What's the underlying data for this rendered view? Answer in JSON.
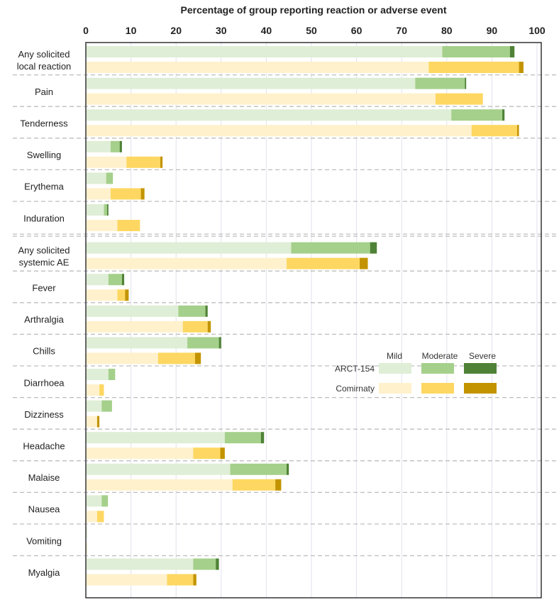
{
  "chart_data": {
    "type": "bar",
    "orientation": "horizontal-stacked",
    "title": "Percentage of group reporting reaction or adverse event",
    "xlabel": "Percentage of group reporting reaction or adverse event",
    "xlim": [
      0,
      100
    ],
    "xticks": [
      0,
      10,
      20,
      30,
      40,
      50,
      60,
      70,
      80,
      90,
      100
    ],
    "grid": true,
    "legend": {
      "position": "right-middle",
      "severity_labels": [
        "Mild",
        "Moderate",
        "Severe"
      ],
      "groups": [
        {
          "name": "ARCT-154",
          "colors": [
            "#dfeed6",
            "#a5d08b",
            "#4f8236"
          ]
        },
        {
          "name": "Comirnaty",
          "colors": [
            "#fff1cc",
            "#fdd761",
            "#c39400"
          ]
        }
      ]
    },
    "note": "Values are cumulative stacked percentages: mild, mild+moderate, mild+moderate+severe",
    "categories": [
      {
        "label": [
          "Any solicited",
          "local reaction"
        ],
        "arct": [
          79,
          94,
          95
        ],
        "comirnaty": [
          76,
          96,
          97
        ],
        "group_break_after": false
      },
      {
        "label": [
          "Pain"
        ],
        "arct": [
          73,
          84,
          84.3
        ],
        "comirnaty": [
          77.5,
          88,
          88
        ]
      },
      {
        "label": [
          "Tenderness"
        ],
        "arct": [
          81,
          92.3,
          92.8
        ],
        "comirnaty": [
          85.5,
          95.6,
          96
        ]
      },
      {
        "label": [
          "Swelling"
        ],
        "arct": [
          5.5,
          7.5,
          8
        ],
        "comirnaty": [
          9,
          16.5,
          17
        ]
      },
      {
        "label": [
          "Erythema"
        ],
        "arct": [
          4.5,
          6,
          6
        ],
        "comirnaty": [
          5.5,
          12.2,
          13
        ]
      },
      {
        "label": [
          "Induration"
        ],
        "arct": [
          4,
          4.7,
          5
        ],
        "comirnaty": [
          7,
          12,
          12
        ],
        "group_break_after": true
      },
      {
        "label": [
          "Any solicited",
          "systemic AE"
        ],
        "arct": [
          45.5,
          63,
          64.5
        ],
        "comirnaty": [
          44.5,
          60.7,
          62.5
        ]
      },
      {
        "label": [
          "Fever"
        ],
        "arct": [
          5,
          8,
          8.5
        ],
        "comirnaty": [
          7,
          8.7,
          9.5
        ]
      },
      {
        "label": [
          "Arthralgia"
        ],
        "arct": [
          20.5,
          26.5,
          27
        ],
        "comirnaty": [
          21.5,
          27,
          27.7
        ]
      },
      {
        "label": [
          "Chills"
        ],
        "arct": [
          22.5,
          29.5,
          30
        ],
        "comirnaty": [
          16,
          24.2,
          25.5
        ]
      },
      {
        "label": [
          "Diarrhoea"
        ],
        "arct": [
          5,
          6.5,
          6.5
        ],
        "comirnaty": [
          3,
          4,
          4
        ]
      },
      {
        "label": [
          "Dizziness"
        ],
        "arct": [
          3.5,
          5.8,
          5.8
        ],
        "comirnaty": [
          2.5,
          2.5,
          3
        ]
      },
      {
        "label": [
          "Headache"
        ],
        "arct": [
          30.8,
          38.8,
          39.5
        ],
        "comirnaty": [
          23.8,
          29.8,
          30.8
        ]
      },
      {
        "label": [
          "Malaise"
        ],
        "arct": [
          32,
          44.5,
          45
        ],
        "comirnaty": [
          32.5,
          42,
          43.3
        ]
      },
      {
        "label": [
          "Nausea"
        ],
        "arct": [
          3.5,
          4.9,
          4.9
        ],
        "comirnaty": [
          2.5,
          4,
          4
        ]
      },
      {
        "label": [
          "Vomiting"
        ],
        "arct": [
          0.3,
          0.3,
          0.3
        ],
        "comirnaty": [
          0.3,
          0.3,
          0.3
        ]
      },
      {
        "label": [
          "Myalgia"
        ],
        "arct": [
          23.8,
          28.8,
          29.5
        ],
        "comirnaty": [
          18,
          23.8,
          24.5
        ]
      }
    ]
  }
}
